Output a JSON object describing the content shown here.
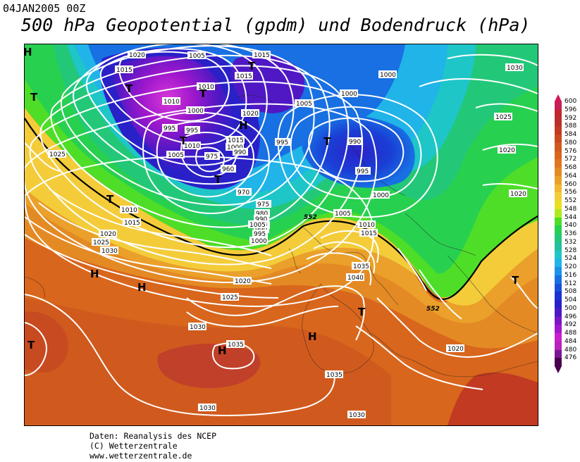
{
  "header": {
    "date": "04JAN2005 00Z",
    "title": "500 hPa Geopotential (gpdm) und Bodendruck (hPa)"
  },
  "footer": {
    "line1": "Daten: Reanalysis des NCEP",
    "line2": "(C) Wetterzentrale",
    "line3": "www.wetterzentrale.de"
  },
  "colorbar": {
    "labels": [
      "600",
      "596",
      "592",
      "588",
      "584",
      "580",
      "576",
      "572",
      "568",
      "564",
      "560",
      "556",
      "552",
      "548",
      "544",
      "540",
      "536",
      "532",
      "528",
      "524",
      "520",
      "516",
      "512",
      "508",
      "504",
      "500",
      "496",
      "492",
      "488",
      "484",
      "480",
      "476"
    ],
    "colors": [
      "#c81e5a",
      "#c0282d",
      "#b8302a",
      "#c23a22",
      "#c84a20",
      "#d05a1e",
      "#d8661c",
      "#de7622",
      "#e48a24",
      "#eaa02a",
      "#f0b82e",
      "#f4cc3a",
      "#e8e020",
      "#aeea22",
      "#4ede28",
      "#28d050",
      "#22c878",
      "#20c0a0",
      "#1ec6c8",
      "#20b4e8",
      "#1c92e8",
      "#1870e2",
      "#1650da",
      "#1a32d2",
      "#2a20c8",
      "#5018c4",
      "#7a16c6",
      "#a018cc",
      "#c820cc",
      "#b822b8",
      "#7a1890",
      "#4a0050"
    ]
  },
  "map": {
    "pressure_labels": [
      "1020",
      "1015",
      "1010",
      "1005",
      "1000",
      "995",
      "1015",
      "1015",
      "995",
      "1000",
      "1005",
      "1000",
      "1030",
      "1025",
      "1020",
      "1025",
      "1020",
      "1010",
      "1015",
      "1020",
      "1025",
      "1030",
      "1025",
      "1020",
      "1030",
      "1035",
      "1030",
      "1035",
      "1040",
      "1030",
      "1035",
      "1020",
      "1015",
      "1010",
      "1005",
      "1000",
      "995",
      "990",
      "985",
      "980",
      "975",
      "970",
      "960",
      "975",
      "990",
      "990",
      "995",
      "1000",
      "1005",
      "1010",
      "1015",
      "1020",
      "1000",
      "1005",
      "1010",
      "995",
      "990"
    ],
    "height_labels": [
      "552",
      "552"
    ],
    "highs": [
      "H",
      "H",
      "H",
      "H",
      "H",
      "H"
    ],
    "lows": [
      "T",
      "T",
      "T",
      "T",
      "T",
      "T",
      "T",
      "T",
      "T",
      "T",
      "T"
    ]
  }
}
